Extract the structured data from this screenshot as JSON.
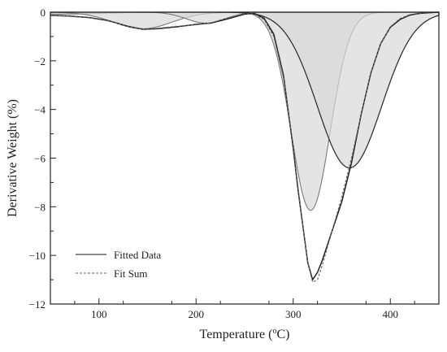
{
  "chart_data": {
    "type": "area",
    "xlabel": "Temperature (",
    "xlabel_sup": "o",
    "xlabel_end": "C)",
    "ylabel": "Derivative Weight (%)",
    "xlim": [
      50,
      450
    ],
    "ylim": [
      -12,
      0
    ],
    "x_ticks": [
      100,
      200,
      300,
      400
    ],
    "x_tick_labels": [
      "100",
      "200",
      "300",
      "400"
    ],
    "y_ticks": [
      0,
      -2,
      -4,
      -6,
      -8,
      -10,
      -12
    ],
    "y_tick_labels": [
      "0",
      "−2",
      "−4",
      "−6",
      "−8",
      "−10",
      "−12"
    ],
    "legend": {
      "position": "bottom-left",
      "entries": [
        "Fitted Data",
        "Fit Sum"
      ]
    },
    "grid": false,
    "colors": {
      "fitted": "#444444",
      "fit_sum": "#666666",
      "fill": "#d9d9d9",
      "fill_edge": "#7a7a7a"
    },
    "components": [
      {
        "center": 60,
        "amplitude": -0.08,
        "sigma": 40
      },
      {
        "center": 145,
        "amplitude": -0.68,
        "sigma": 30
      },
      {
        "center": 210,
        "amplitude": -0.45,
        "sigma": 20
      },
      {
        "center": 318,
        "amplitude": -8.15,
        "sigma": 20
      },
      {
        "center": 358,
        "amplitude": -6.4,
        "sigma": 33
      }
    ],
    "series": [
      {
        "name": "Fitted Data",
        "style": "solid",
        "x": [
          50,
          70,
          90,
          110,
          130,
          145,
          160,
          180,
          200,
          215,
          230,
          250,
          260,
          270,
          280,
          290,
          300,
          305,
          310,
          315,
          320,
          325,
          330,
          335,
          340,
          350,
          360,
          370,
          380,
          390,
          400,
          410,
          420,
          430,
          440,
          450
        ],
        "y": [
          -0.13,
          -0.16,
          -0.22,
          -0.35,
          -0.58,
          -0.7,
          -0.68,
          -0.6,
          -0.5,
          -0.45,
          -0.3,
          -0.08,
          -0.05,
          -0.25,
          -0.9,
          -2.6,
          -5.6,
          -7.3,
          -8.8,
          -10.3,
          -11.0,
          -10.7,
          -10.2,
          -9.6,
          -9.0,
          -7.8,
          -6.2,
          -4.2,
          -2.5,
          -1.3,
          -0.62,
          -0.3,
          -0.12,
          -0.05,
          -0.02,
          0
        ]
      },
      {
        "name": "Fit Sum",
        "style": "dashed",
        "x": [
          50,
          70,
          90,
          110,
          130,
          145,
          160,
          180,
          200,
          215,
          230,
          250,
          260,
          270,
          280,
          290,
          300,
          305,
          310,
          315,
          320,
          325,
          330,
          335,
          340,
          350,
          360,
          370,
          380,
          390,
          400,
          410,
          420,
          430,
          440,
          450
        ],
        "y": [
          -0.14,
          -0.17,
          -0.23,
          -0.36,
          -0.58,
          -0.69,
          -0.66,
          -0.58,
          -0.52,
          -0.44,
          -0.26,
          -0.05,
          -0.08,
          -0.3,
          -1.0,
          -2.7,
          -5.5,
          -7.2,
          -8.8,
          -10.3,
          -11.1,
          -11.0,
          -10.4,
          -9.7,
          -9.0,
          -7.6,
          -6.0,
          -4.2,
          -2.5,
          -1.3,
          -0.6,
          -0.26,
          -0.1,
          -0.04,
          -0.01,
          0
        ]
      }
    ]
  }
}
